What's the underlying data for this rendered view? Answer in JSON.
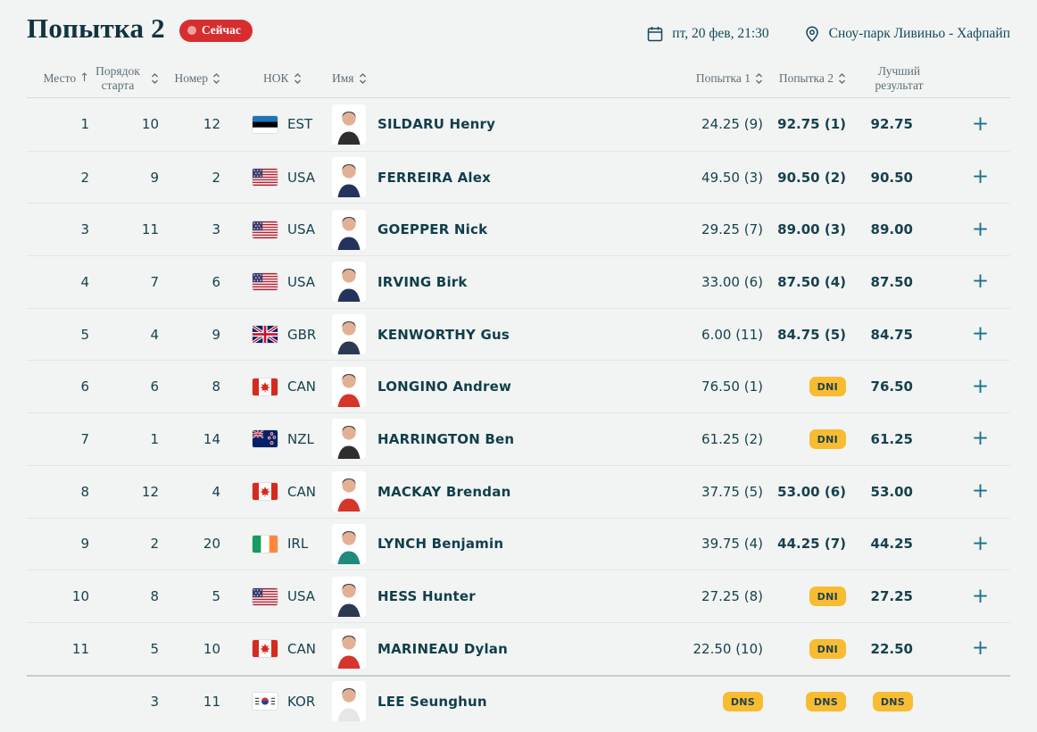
{
  "page": {
    "title": "Попытка 2",
    "live_badge": "Сейчас",
    "datetime": "пт, 20 фев, 21:30",
    "venue": "Сноу-парк Ливиньо - Хафпайп"
  },
  "colors": {
    "background": "#F1F4F2",
    "title_text": "#12333F",
    "live_badge_bg": "#D62E2E",
    "table_text": "#17414E",
    "header_text": "#5D6E78",
    "result_badge_bg": "#F8BC32",
    "plus_icon": "#1A7090"
  },
  "table": {
    "headers": {
      "place": "Место",
      "start_order": "Порядок старта",
      "bib": "Номер",
      "noc": "НОК",
      "name": "Имя",
      "attempt1": "Попытка 1",
      "attempt2": "Попытка 2",
      "best": "Лучший результат"
    },
    "rows": [
      {
        "rank": "1",
        "start": "10",
        "bib": "12",
        "noc": "EST",
        "name": "SILDARU Henry",
        "attempt1": "24.25 (9)",
        "attempt2": "92.75 (1)",
        "best": "92.75",
        "expandable": true,
        "avatar_color": "#2E2E30"
      },
      {
        "rank": "2",
        "start": "9",
        "bib": "2",
        "noc": "USA",
        "name": "FERREIRA Alex",
        "attempt1": "49.50 (3)",
        "attempt2": "90.50 (2)",
        "best": "90.50",
        "expandable": true,
        "avatar_color": "#24335E"
      },
      {
        "rank": "3",
        "start": "11",
        "bib": "3",
        "noc": "USA",
        "name": "GOEPPER Nick",
        "attempt1": "29.25 (7)",
        "attempt2": "89.00 (3)",
        "best": "89.00",
        "expandable": true,
        "avatar_color": "#24335E"
      },
      {
        "rank": "4",
        "start": "7",
        "bib": "6",
        "noc": "USA",
        "name": "IRVING Birk",
        "attempt1": "33.00 (6)",
        "attempt2": "87.50 (4)",
        "best": "87.50",
        "expandable": true,
        "avatar_color": "#24335E"
      },
      {
        "rank": "5",
        "start": "4",
        "bib": "9",
        "noc": "GBR",
        "name": "KENWORTHY Gus",
        "attempt1": "6.00 (11)",
        "attempt2": "84.75 (5)",
        "best": "84.75",
        "expandable": true,
        "avatar_color": "#2B3A52"
      },
      {
        "rank": "6",
        "start": "6",
        "bib": "8",
        "noc": "CAN",
        "name": "LONGINO Andrew",
        "attempt1": "76.50 (1)",
        "attempt2": "DNI",
        "best": "76.50",
        "expandable": true,
        "avatar_color": "#D6352C"
      },
      {
        "rank": "7",
        "start": "1",
        "bib": "14",
        "noc": "NZL",
        "name": "HARRINGTON Ben",
        "attempt1": "61.25 (2)",
        "attempt2": "DNI",
        "best": "61.25",
        "expandable": true,
        "avatar_color": "#2E2E30"
      },
      {
        "rank": "8",
        "start": "12",
        "bib": "4",
        "noc": "CAN",
        "name": "MACKAY Brendan",
        "attempt1": "37.75 (5)",
        "attempt2": "53.00 (6)",
        "best": "53.00",
        "expandable": true,
        "avatar_color": "#D6352C"
      },
      {
        "rank": "9",
        "start": "2",
        "bib": "20",
        "noc": "IRL",
        "name": "LYNCH Benjamin",
        "attempt1": "39.75 (4)",
        "attempt2": "44.25 (7)",
        "best": "44.25",
        "expandable": true,
        "avatar_color": "#1F8A7E"
      },
      {
        "rank": "10",
        "start": "8",
        "bib": "5",
        "noc": "USA",
        "name": "HESS Hunter",
        "attempt1": "27.25 (8)",
        "attempt2": "DNI",
        "best": "27.25",
        "expandable": true,
        "avatar_color": "#2B3A52"
      },
      {
        "rank": "11",
        "start": "5",
        "bib": "10",
        "noc": "CAN",
        "name": "MARINEAU Dylan",
        "attempt1": "22.50 (10)",
        "attempt2": "DNI",
        "best": "22.50",
        "expandable": true,
        "avatar_color": "#D6352C"
      },
      {
        "rank": "",
        "start": "3",
        "bib": "11",
        "noc": "KOR",
        "name": "LEE Seunghun",
        "attempt1": "DNS",
        "attempt2": "DNS",
        "best": "DNS",
        "expandable": false,
        "avatar_color": "#E6E6E6"
      }
    ]
  }
}
